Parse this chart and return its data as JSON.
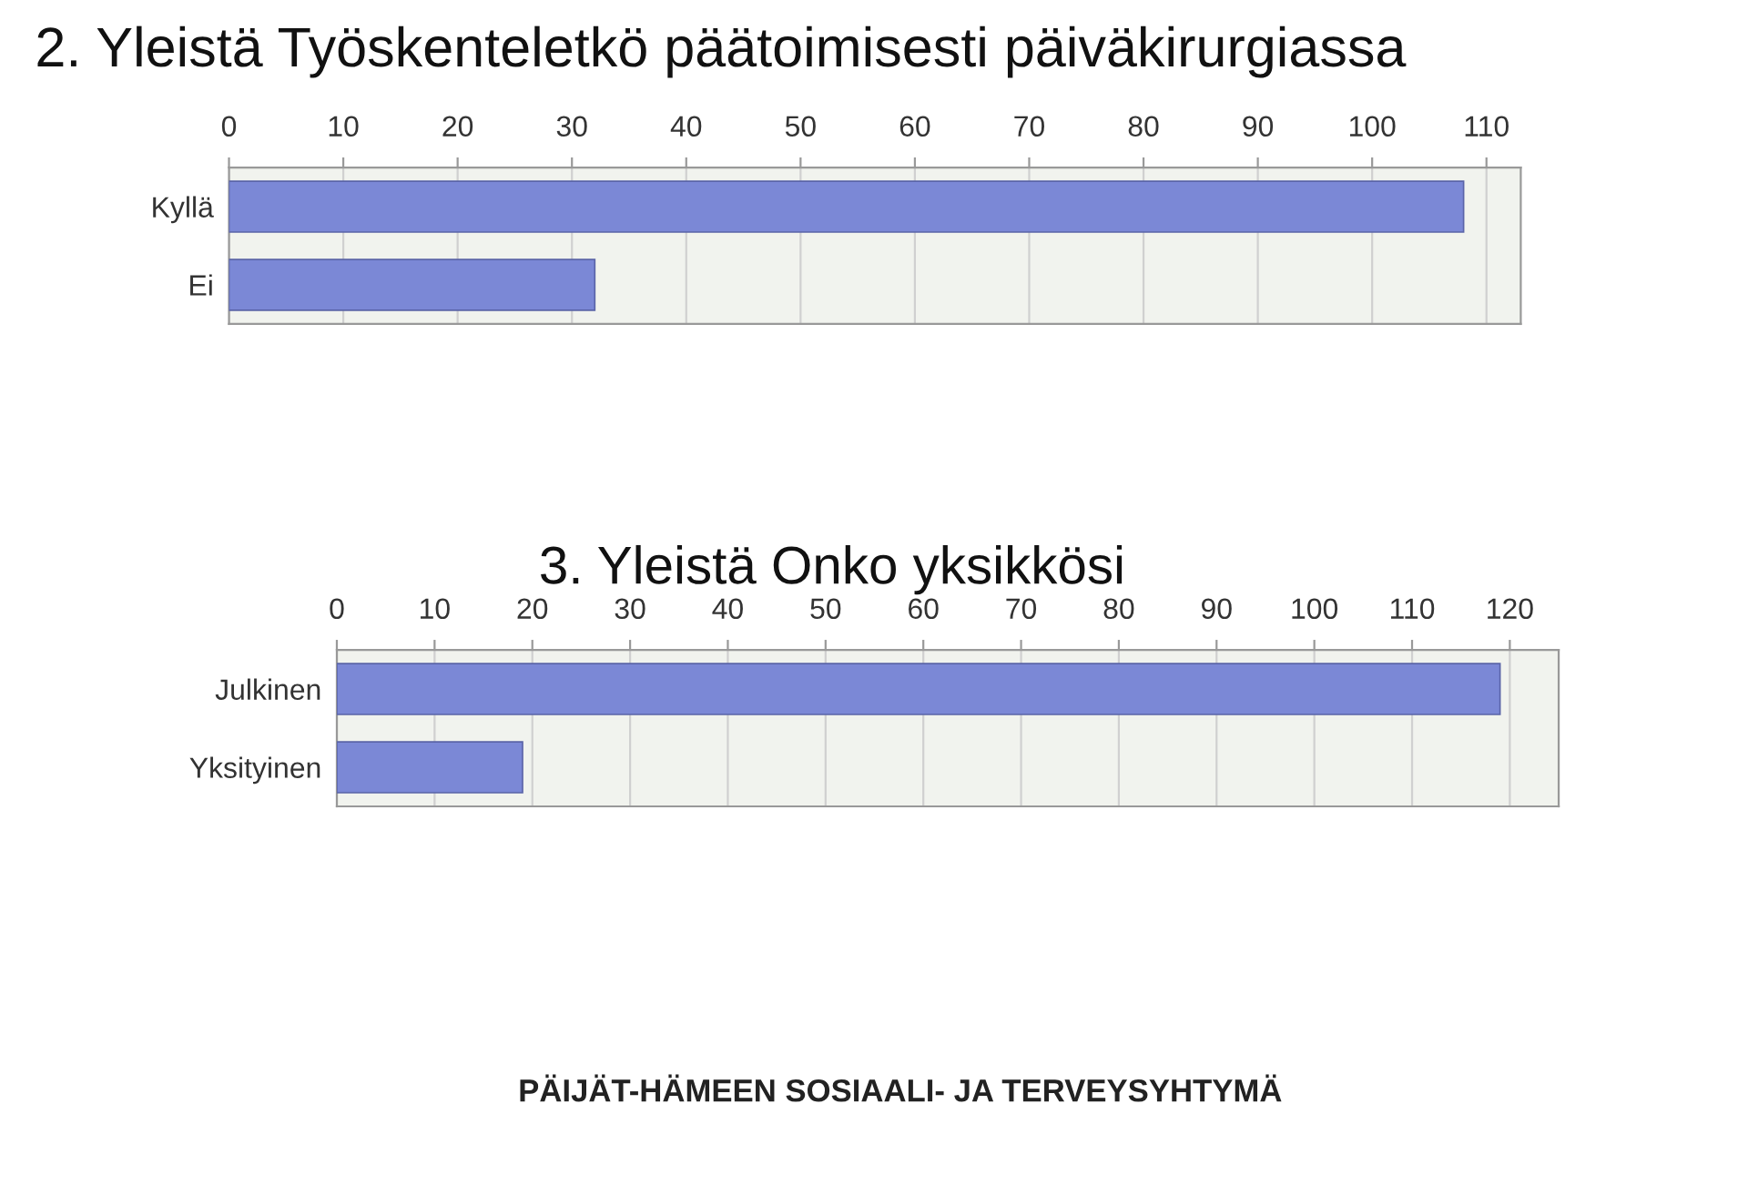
{
  "chart_data": [
    {
      "type": "bar",
      "orientation": "horizontal",
      "title": "2. Yleistä Työskenteletkö päätoimisesti päiväkirurgiassa",
      "categories": [
        "Kyllä",
        "Ei"
      ],
      "values": [
        108,
        32
      ],
      "color": "#7b88d6",
      "xlim": [
        0,
        113
      ],
      "xticks": [
        0,
        10,
        20,
        30,
        40,
        50,
        60,
        70,
        80,
        90,
        100,
        110
      ],
      "grid": "x",
      "legend": false
    },
    {
      "type": "bar",
      "orientation": "horizontal",
      "title": "3. Yleistä Onko yksikkösi",
      "categories": [
        "Julkinen",
        "Yksityinen"
      ],
      "values": [
        119,
        19
      ],
      "color": "#7b88d6",
      "xlim": [
        0,
        125
      ],
      "xticks": [
        0,
        10,
        20,
        30,
        40,
        50,
        60,
        70,
        80,
        90,
        100,
        110,
        120
      ],
      "grid": "x",
      "legend": false,
      "annotations": [
        "PÄIJÄT-HÄMEEN SOSIAALI- JA TERVEYSYHTYMÄ"
      ]
    }
  ]
}
